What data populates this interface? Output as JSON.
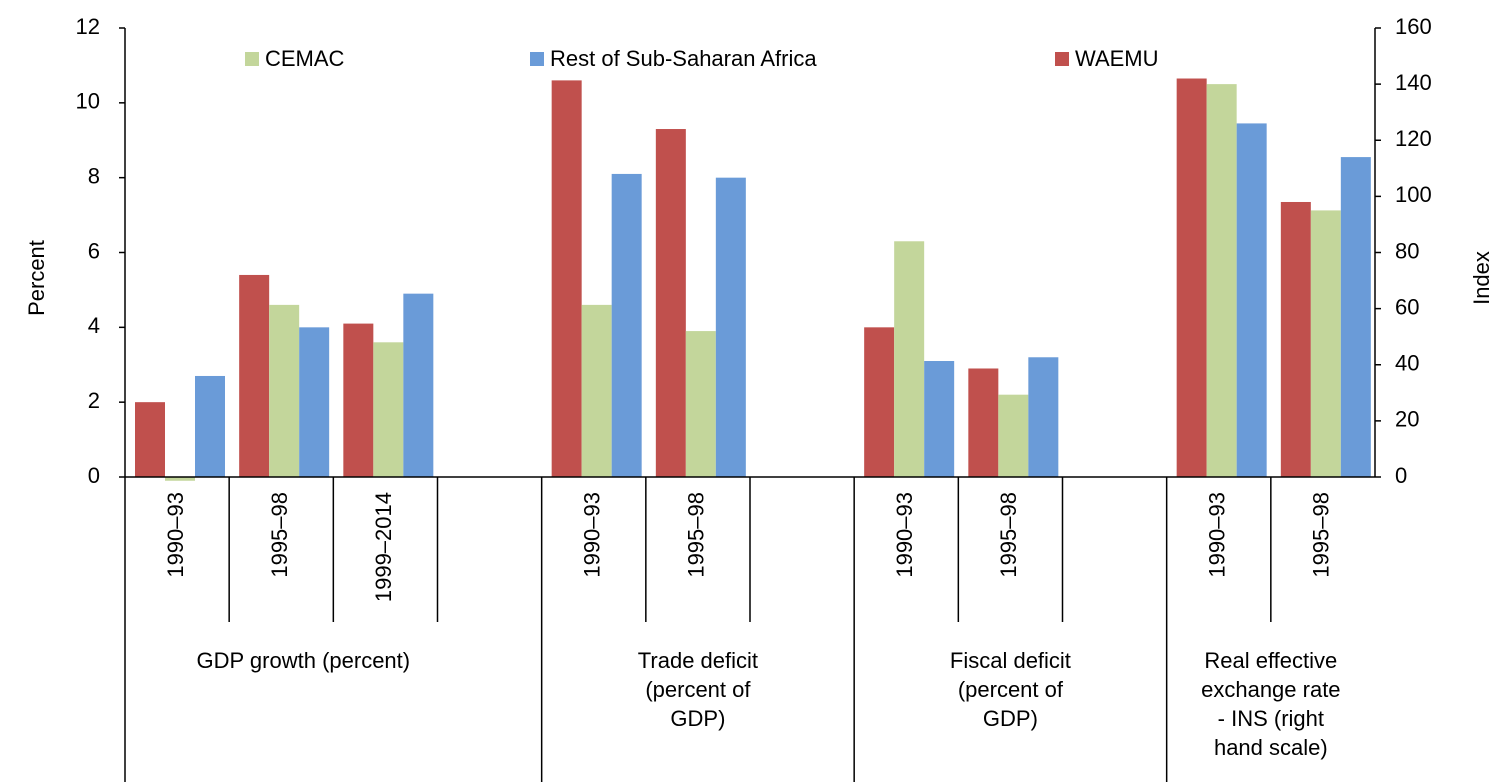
{
  "chart_data": {
    "type": "bar",
    "y_label": "Percent",
    "y2_label": "Index",
    "categories": [
      "1990–93",
      "1995–98",
      "1999–2014",
      null,
      "1990–93",
      "1995–98",
      null,
      "1990–93",
      "1995–98",
      null,
      "1990–93",
      "1995–98"
    ],
    "groups": [
      {
        "label": [
          "GDP growth (percent)"
        ],
        "span": 4
      },
      {
        "label": [
          "Trade deficit",
          "(percent of",
          "GDP)"
        ],
        "span": 3
      },
      {
        "label": [
          "Fiscal deficit",
          "(percent of",
          "GDP)"
        ],
        "span": 3
      },
      {
        "label": [
          "Real effective",
          "exchange rate",
          "- INS (right",
          "hand scale)"
        ],
        "span": 2
      }
    ],
    "series": [
      {
        "name": "WAEMU",
        "color": "#c0504d",
        "values": [
          2.0,
          5.4,
          4.1,
          null,
          10.6,
          9.3,
          null,
          4.0,
          2.9,
          null,
          null,
          null
        ]
      },
      {
        "name": "CEMAC",
        "color": "#c3d69b",
        "values": [
          -0.1,
          4.6,
          3.6,
          null,
          4.6,
          3.9,
          null,
          6.3,
          2.2,
          null,
          null,
          null
        ]
      },
      {
        "name": "Rest of Sub-Saharan Africa",
        "color": "#6a9bd8",
        "values": [
          2.7,
          4.0,
          4.9,
          null,
          8.1,
          8.0,
          null,
          3.1,
          3.2,
          null,
          null,
          null
        ]
      },
      {
        "name": "WAEMU",
        "color": "#c0504d",
        "axis": "y2",
        "values": [
          null,
          null,
          null,
          null,
          null,
          null,
          null,
          null,
          null,
          null,
          142,
          98
        ]
      },
      {
        "name": "CEMAC",
        "color": "#c3d69b",
        "axis": "y2",
        "values": [
          null,
          null,
          null,
          null,
          null,
          null,
          null,
          null,
          null,
          null,
          140,
          95
        ]
      },
      {
        "name": "Rest of Sub-Saharan Africa",
        "color": "#6a9bd8",
        "axis": "y2",
        "values": [
          null,
          null,
          null,
          null,
          null,
          null,
          null,
          null,
          null,
          null,
          126,
          114
        ]
      }
    ],
    "ylim": [
      0,
      12
    ],
    "yticks": [
      0,
      2,
      4,
      6,
      8,
      10,
      12
    ],
    "y2lim": [
      0,
      160
    ],
    "y2ticks": [
      0,
      20,
      40,
      60,
      80,
      100,
      120,
      140,
      160
    ],
    "legend_order": [
      "CEMAC",
      "Rest of Sub-Saharan Africa",
      "WAEMU"
    ]
  }
}
